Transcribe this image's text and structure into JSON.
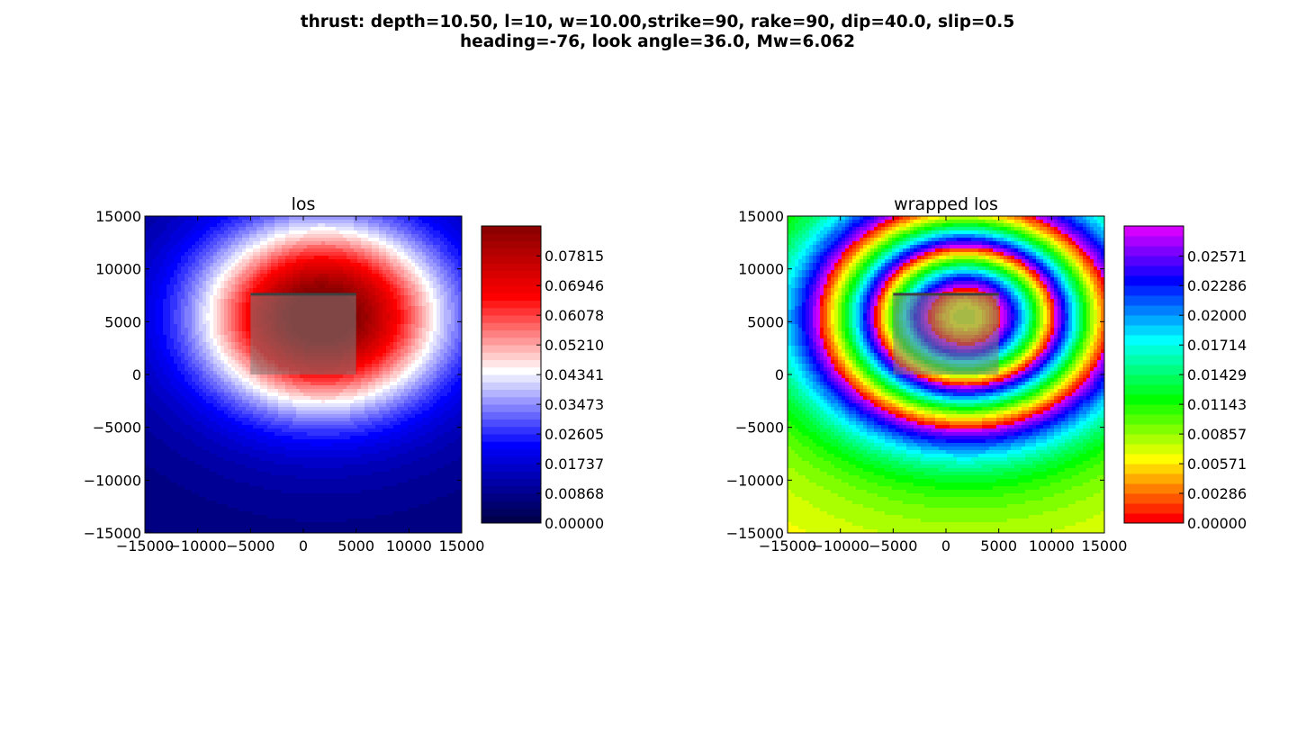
{
  "figure": {
    "title_line1": "thrust: depth=10.50, l=10, w=10.00,strike=90, rake=90, dip=40.0, slip=0.5",
    "title_line2": "heading=-76, look angle=36.0, Mw=6.062"
  },
  "chart_data": [
    {
      "type": "heatmap",
      "title": "los",
      "colormap": "seismic",
      "colormap_colors": [
        "#00004c",
        "#0000ff",
        "#ffffff",
        "#ff0000",
        "#800000"
      ],
      "xlim": [
        -15000,
        15000
      ],
      "ylim": [
        -15000,
        15000
      ],
      "xticks": [
        -15000,
        -10000,
        -5000,
        0,
        5000,
        10000,
        15000
      ],
      "yticks": [
        -15000,
        -10000,
        -5000,
        0,
        5000,
        10000,
        15000
      ],
      "xtick_labels": [
        "−15000",
        "−10000",
        "−5000",
        "0",
        "5000",
        "10000",
        "15000"
      ],
      "ytick_labels": [
        "−15000",
        "−10000",
        "−5000",
        "0",
        "5000",
        "10000",
        "15000"
      ],
      "colorbar_range": [
        0.0,
        0.0869
      ],
      "colorbar_ticks": [
        0.0,
        0.00868,
        0.01737,
        0.02605,
        0.03473,
        0.04341,
        0.0521,
        0.06078,
        0.06946,
        0.07815
      ],
      "colorbar_tick_labels": [
        "0.00000",
        "0.00868",
        "0.01737",
        "0.02605",
        "0.03473",
        "0.04341",
        "0.05210",
        "0.06078",
        "0.06946",
        "0.07815"
      ],
      "peak_value_center": [
        1800,
        5500
      ],
      "fault_rectangle": {
        "x": [
          -5000,
          5000
        ],
        "y": [
          0,
          7600
        ]
      },
      "fault_trace": {
        "x": [
          -5000,
          5000
        ],
        "y": [
          7600,
          7600
        ]
      }
    },
    {
      "type": "heatmap",
      "title": "wrapped los",
      "colormap": "hsv",
      "colormap_colors": [
        "#ff0000",
        "#ffff00",
        "#00ff00",
        "#00ffff",
        "#0000ff",
        "#ff00ff"
      ],
      "xlim": [
        -15000,
        15000
      ],
      "ylim": [
        -15000,
        15000
      ],
      "xticks": [
        -15000,
        -10000,
        -5000,
        0,
        5000,
        10000,
        15000
      ],
      "yticks": [
        -15000,
        -10000,
        -5000,
        0,
        5000,
        10000,
        15000
      ],
      "xtick_labels": [
        "−15000",
        "−10000",
        "−5000",
        "0",
        "5000",
        "10000",
        "15000"
      ],
      "ytick_labels": [
        "−15000",
        "−10000",
        "−5000",
        "0",
        "5000",
        "10000",
        "15000"
      ],
      "colorbar_range": [
        0.0,
        0.0286
      ],
      "colorbar_ticks": [
        0.0,
        0.00286,
        0.00571,
        0.00857,
        0.01143,
        0.01429,
        0.01714,
        0.02,
        0.02286,
        0.02571
      ],
      "colorbar_tick_labels": [
        "0.00000",
        "0.00286",
        "0.00571",
        "0.00857",
        "0.01143",
        "0.01429",
        "0.01714",
        "0.02000",
        "0.02286",
        "0.02571"
      ],
      "wrap_period": 0.0286,
      "peak_value_center": [
        1800,
        5500
      ],
      "fault_rectangle": {
        "x": [
          -5000,
          5000
        ],
        "y": [
          0,
          7600
        ]
      },
      "fault_trace": {
        "x": [
          -5000,
          5000
        ],
        "y": [
          7600,
          7600
        ]
      }
    }
  ]
}
